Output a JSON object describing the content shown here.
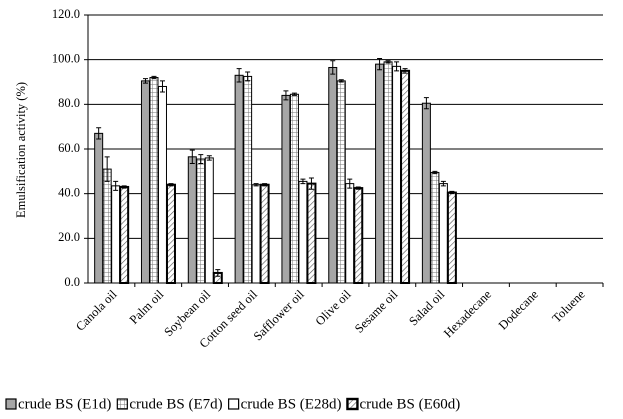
{
  "chart_data": {
    "type": "bar",
    "y_label": "Emulsification activity (%)",
    "categories": [
      "Canola oil",
      "Palm oil",
      "Soybean oil",
      "Cotton seed oil",
      "Safflower oil",
      "Olive oil",
      "Sesame oil",
      "Salad oil",
      "Hexadecane",
      "Dodecane",
      "Toluene"
    ],
    "series": [
      {
        "name": "crude BS (E1d)",
        "color": "#a6a6a6",
        "values": [
          67,
          90.5,
          56.5,
          93,
          84,
          96.5,
          98,
          80.5,
          0,
          0,
          0
        ],
        "errors": [
          2.5,
          1,
          3,
          3,
          2,
          3,
          2.5,
          2.5,
          0,
          0,
          0
        ]
      },
      {
        "name": "crude BS (E7d)",
        "color": "#d0d0d0",
        "values": [
          51,
          92,
          55.5,
          92.5,
          84.5,
          90.5,
          99,
          49.5,
          0,
          0,
          0
        ],
        "errors": [
          5.5,
          0.5,
          2,
          2,
          0.5,
          0.5,
          0.5,
          0.5,
          0,
          0,
          0
        ]
      },
      {
        "name": "crude BS (E28d)",
        "color": "#ffffff",
        "values": [
          43.5,
          88,
          56,
          44,
          45.5,
          44.5,
          97,
          44.5,
          0,
          0,
          0
        ],
        "errors": [
          2,
          2.5,
          1,
          0.5,
          1,
          2,
          2,
          1,
          0,
          0,
          0
        ]
      },
      {
        "name": "crude BS (E60d)",
        "color": "#ffffff",
        "values": [
          43,
          44,
          4.5,
          44,
          44.5,
          42.5,
          95,
          40.5,
          0,
          0,
          0
        ],
        "errors": [
          0.5,
          0.5,
          1.5,
          0.5,
          2.5,
          0.5,
          1,
          0.5,
          0,
          0,
          0
        ]
      }
    ],
    "ylim": [
      0,
      120
    ],
    "yticks": [
      {
        "value": 0,
        "label": "0.0"
      },
      {
        "value": 20,
        "label": "20.0"
      },
      {
        "value": 40,
        "label": "40.0"
      },
      {
        "value": 60,
        "label": "60.0"
      },
      {
        "value": 80,
        "label": "80.0"
      },
      {
        "value": 100,
        "label": "100.0"
      },
      {
        "value": 120,
        "label": "120.0"
      }
    ],
    "grid": true,
    "legend": "bottom"
  }
}
